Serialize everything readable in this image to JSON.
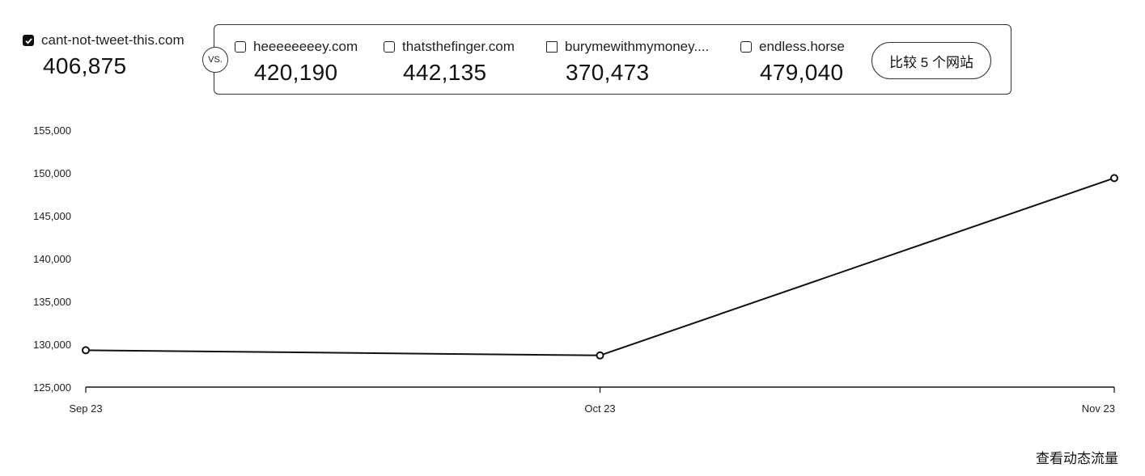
{
  "primary": {
    "name": "cant-not-tweet-this.com",
    "value": "406,875",
    "checked": true
  },
  "vs_label": "VS.",
  "competitors": [
    {
      "name": "heeeeeeeey.com",
      "value": "420,190"
    },
    {
      "name": "thatsthefinger.com",
      "value": "442,135"
    },
    {
      "name": "burymewithmymoney....",
      "value": "370,473"
    },
    {
      "name": "endless.horse",
      "value": "479,040"
    }
  ],
  "compare_button": "比较 5 个网站",
  "link_label": "查看动态流量",
  "colors": {
    "line": "#111111",
    "axis": "#111111",
    "text": "#111111"
  },
  "chart_data": {
    "type": "line",
    "x": [
      "Sep 23",
      "Oct 23",
      "Nov 23"
    ],
    "series": [
      {
        "values": [
          129300,
          128700,
          149400
        ]
      }
    ],
    "yticks": [
      "155,000",
      "150,000",
      "145,000",
      "140,000",
      "135,000",
      "130,000",
      "125,000"
    ],
    "ylim": [
      125000,
      155000
    ],
    "grid": false
  }
}
